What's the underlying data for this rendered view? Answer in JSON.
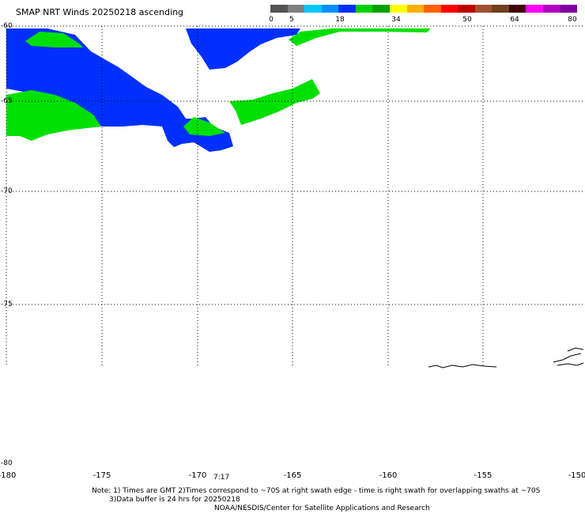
{
  "title": "SMAP NRT Winds 20250218 ascending",
  "colorbar": {
    "segments": [
      {
        "color": "#555555"
      },
      {
        "color": "#808080"
      },
      {
        "color": "#00c8ff"
      },
      {
        "color": "#0090ff"
      },
      {
        "color": "#0030ff"
      },
      {
        "color": "#00d000"
      },
      {
        "color": "#00a000"
      },
      {
        "color": "#ffff00"
      },
      {
        "color": "#ffb000"
      },
      {
        "color": "#ff6000"
      },
      {
        "color": "#ff0000"
      },
      {
        "color": "#c00000"
      },
      {
        "color": "#a05030"
      },
      {
        "color": "#704020"
      },
      {
        "color": "#400000"
      },
      {
        "color": "#ff00ff"
      },
      {
        "color": "#b000c0"
      },
      {
        "color": "#8000a0"
      }
    ],
    "tick_labels": [
      "0",
      "5",
      "18",
      "34",
      "50",
      "64",
      "80"
    ]
  },
  "map": {
    "lat_labels": [
      "-60",
      "-65",
      "-70",
      "-75",
      "-80"
    ],
    "lon_labels": [
      "-180",
      "-175",
      "-170",
      "-165",
      "-160",
      "-155",
      "-150"
    ],
    "swath_time": "7:17",
    "wind_colors": {
      "blue": "#0030ff",
      "green": "#00e000"
    }
  },
  "notes": {
    "line1": "Note: 1) Times are GMT 2)Times correspond to ~70S at right swath edge - time is right swath for overlapping swaths at ~70S",
    "line2": "3)Data buffer is 24 hrs for 20250218",
    "line3": "NOAA/NESDIS/Center for Satellite Applications and Research"
  }
}
